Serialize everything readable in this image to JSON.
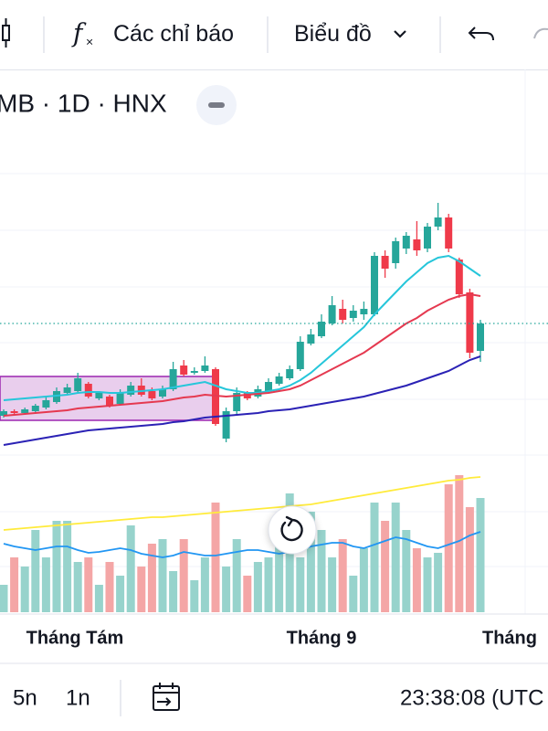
{
  "toolbar": {
    "indicators": "Các chỉ báo",
    "chart_type": "Biểu đồ"
  },
  "symbol": "MB · 1D · HNX",
  "chart_data": {
    "type": "candlestick",
    "ylim": [
      0,
      350
    ],
    "up_color": "#26a69a",
    "down_color": "#ef3a4a",
    "open": [
      45,
      50,
      48,
      50,
      54,
      60,
      70,
      72,
      80,
      64,
      66,
      58,
      68,
      78,
      72,
      66,
      74,
      100,
      92,
      94,
      96,
      20,
      50,
      70,
      66,
      72,
      80,
      86,
      96,
      124,
      132,
      146,
      162,
      152,
      156,
      156,
      220,
      212,
      228,
      238,
      228,
      252,
      262,
      216,
      180,
      116
    ],
    "high": [
      52,
      52,
      54,
      58,
      66,
      76,
      80,
      92,
      82,
      72,
      68,
      74,
      82,
      86,
      76,
      78,
      104,
      106,
      98,
      110,
      98,
      54,
      76,
      72,
      78,
      86,
      92,
      100,
      132,
      140,
      156,
      176,
      172,
      166,
      170,
      224,
      226,
      240,
      246,
      258,
      256,
      278,
      266,
      218,
      184,
      150
    ],
    "low": [
      43,
      46,
      46,
      48,
      52,
      58,
      68,
      70,
      64,
      62,
      54,
      56,
      66,
      66,
      62,
      64,
      72,
      88,
      90,
      92,
      34,
      16,
      46,
      62,
      64,
      70,
      78,
      84,
      94,
      122,
      130,
      144,
      146,
      148,
      150,
      154,
      196,
      206,
      222,
      220,
      224,
      248,
      224,
      174,
      108,
      104
    ],
    "close": [
      50,
      48,
      52,
      56,
      62,
      72,
      76,
      86,
      66,
      70,
      56,
      70,
      78,
      68,
      64,
      74,
      96,
      90,
      94,
      100,
      36,
      50,
      70,
      64,
      74,
      82,
      88,
      96,
      126,
      134,
      148,
      166,
      150,
      160,
      162,
      220,
      206,
      236,
      242,
      226,
      252,
      262,
      228,
      178,
      114,
      146
    ],
    "ma": [
      {
        "color": "#26c6da",
        "values": [
          62,
          63,
          64,
          65,
          66,
          67,
          68,
          70,
          71,
          71,
          70,
          70,
          71,
          72,
          73,
          74,
          76,
          78,
          80,
          82,
          78,
          74,
          72,
          70,
          70,
          72,
          74,
          78,
          84,
          92,
          102,
          112,
          122,
          132,
          142,
          156,
          168,
          180,
          192,
          202,
          212,
          218,
          220,
          214,
          206,
          198
        ]
      },
      {
        "color": "#e53950",
        "values": [
          45,
          46,
          47,
          48,
          49,
          50,
          51,
          53,
          54,
          55,
          56,
          57,
          58,
          59,
          60,
          61,
          63,
          65,
          66,
          68,
          67,
          66,
          67,
          68,
          69,
          70,
          72,
          74,
          78,
          84,
          90,
          96,
          102,
          108,
          114,
          122,
          130,
          138,
          146,
          152,
          160,
          166,
          172,
          176,
          178,
          176
        ]
      },
      {
        "color": "#2b22b5",
        "values": [
          13,
          15,
          17,
          19,
          21,
          23,
          25,
          27,
          29,
          30,
          31,
          32,
          33,
          34,
          35,
          36,
          38,
          39,
          41,
          43,
          44,
          45,
          46,
          47,
          48,
          50,
          51,
          52,
          54,
          56,
          58,
          60,
          62,
          64,
          66,
          69,
          72,
          75,
          78,
          82,
          86,
          90,
          94,
          100,
          106,
          110
        ]
      }
    ],
    "volume": {
      "ylim": [
        0,
        200
      ],
      "up_color": "#97d3cc",
      "down_color": "#f4a6a6",
      "values": [
        30,
        60,
        50,
        90,
        60,
        100,
        100,
        55,
        60,
        30,
        55,
        40,
        95,
        50,
        75,
        80,
        45,
        80,
        35,
        60,
        120,
        50,
        80,
        40,
        55,
        60,
        80,
        130,
        60,
        110,
        90,
        60,
        80,
        40,
        70,
        120,
        100,
        120,
        90,
        70,
        60,
        65,
        140,
        150,
        115,
        125
      ],
      "ma": [
        {
          "color": "#ffeb3b",
          "values": [
            90,
            91,
            92,
            93,
            94,
            95,
            96,
            97,
            98,
            99,
            100,
            101,
            102,
            103,
            104,
            104,
            105,
            106,
            107,
            108,
            109,
            110,
            111,
            112,
            113,
            114,
            115,
            116,
            117,
            118,
            120,
            122,
            124,
            126,
            128,
            130,
            132,
            134,
            136,
            138,
            140,
            142,
            144,
            145,
            147,
            148
          ]
        },
        {
          "color": "#2196f3",
          "values": [
            75,
            72,
            70,
            68,
            70,
            72,
            72,
            68,
            65,
            66,
            68,
            70,
            68,
            64,
            62,
            60,
            62,
            66,
            64,
            62,
            62,
            64,
            66,
            68,
            68,
            66,
            64,
            66,
            68,
            72,
            74,
            76,
            76,
            72,
            70,
            74,
            78,
            82,
            80,
            76,
            72,
            70,
            74,
            78,
            84,
            88
          ]
        }
      ]
    }
  },
  "time_axis": [
    "Tháng Tám",
    "Tháng 9",
    "Tháng"
  ],
  "bottom_bar": {
    "ranges": [
      "5n",
      "1n"
    ],
    "clock": "23:38:08 (UTC"
  }
}
